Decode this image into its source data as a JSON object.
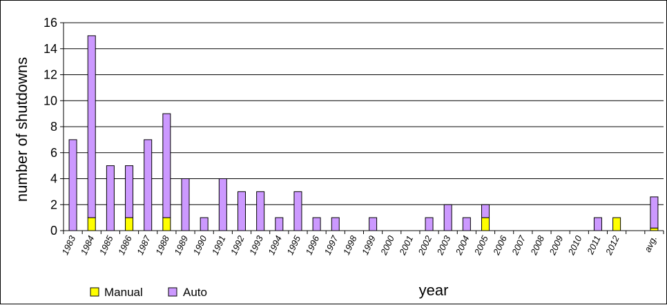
{
  "chart_data": {
    "type": "bar",
    "stacked": true,
    "xlabel": "year",
    "ylabel": "number of shutdowns",
    "ylim": [
      0,
      16
    ],
    "yticks": [
      0,
      2,
      4,
      6,
      8,
      10,
      12,
      14,
      16
    ],
    "grid": true,
    "legend_position": "bottom-left",
    "categories": [
      "1983",
      "1984",
      "1985",
      "1986",
      "1987",
      "1988",
      "1989",
      "1990",
      "1991",
      "1992",
      "1993",
      "1994",
      "1995",
      "1996",
      "1997",
      "1998",
      "1999",
      "2000",
      "2001",
      "2002",
      "2003",
      "2004",
      "2005",
      "2006",
      "2007",
      "2008",
      "2009",
      "2010",
      "2011",
      "2012",
      "",
      "avg."
    ],
    "series": [
      {
        "name": "Manual",
        "color": "#ffff00",
        "values": [
          0,
          1,
          0,
          1,
          0,
          1,
          0,
          0,
          0,
          0,
          0,
          0,
          0,
          0,
          0,
          0,
          0,
          0,
          0,
          0,
          0,
          0,
          1,
          0,
          0,
          0,
          0,
          0,
          0,
          1,
          0,
          0.2
        ]
      },
      {
        "name": "Auto",
        "color": "#cc99ff",
        "values": [
          7,
          14,
          5,
          4,
          7,
          8,
          4,
          1,
          4,
          3,
          3,
          1,
          3,
          1,
          1,
          0,
          1,
          0,
          0,
          1,
          2,
          1,
          1,
          0,
          0,
          0,
          0,
          0,
          1,
          0,
          0,
          2.4
        ]
      }
    ]
  }
}
